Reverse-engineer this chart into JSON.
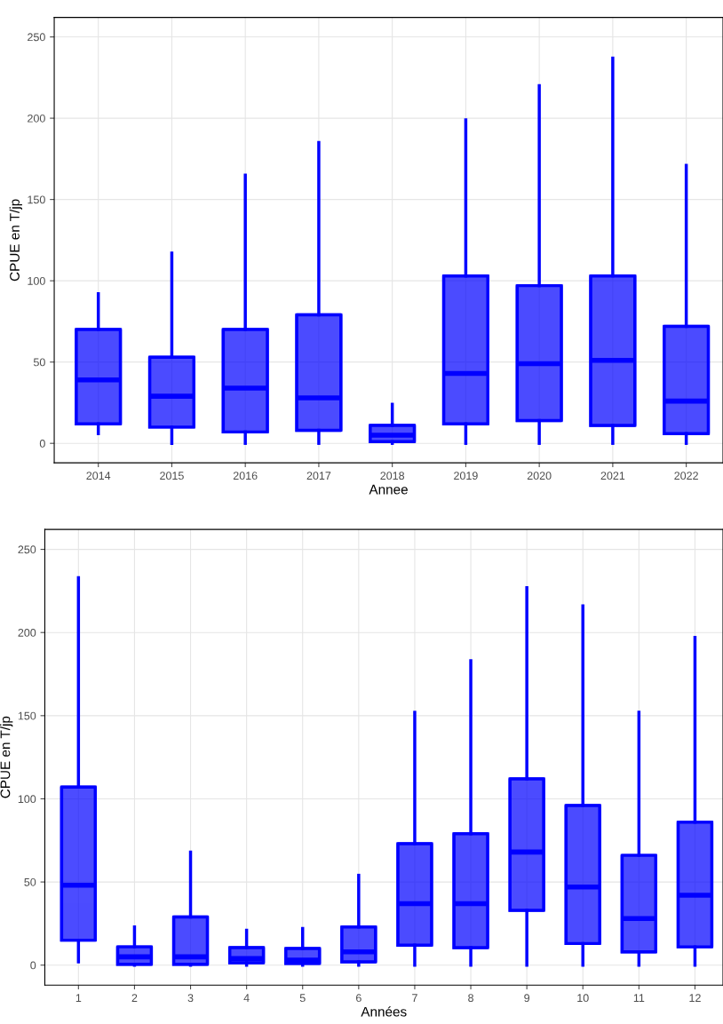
{
  "chart_data": [
    {
      "type": "box",
      "xlabel": "Annee",
      "ylabel": "CPUE en T/jp",
      "categories": [
        "2014",
        "2015",
        "2016",
        "2017",
        "2018",
        "2019",
        "2020",
        "2021",
        "2022"
      ],
      "ylim": [
        -12,
        262
      ],
      "yticks": [
        0,
        50,
        100,
        150,
        200,
        250
      ],
      "grid": true,
      "series": [
        {
          "color": "#0000ff",
          "boxes": [
            {
              "low": 6,
              "q1": 12,
              "median": 39,
              "q3": 70,
              "high": 92
            },
            {
              "low": 0,
              "q1": 10,
              "median": 29,
              "q3": 53,
              "high": 117
            },
            {
              "low": 0,
              "q1": 7,
              "median": 34,
              "q3": 70,
              "high": 165
            },
            {
              "low": 0,
              "q1": 8,
              "median": 28,
              "q3": 79,
              "high": 185
            },
            {
              "low": 0,
              "q1": 1,
              "median": 5,
              "q3": 11,
              "high": 24
            },
            {
              "low": 0,
              "q1": 12,
              "median": 43,
              "q3": 103,
              "high": 199
            },
            {
              "low": 0,
              "q1": 14,
              "median": 49,
              "q3": 97,
              "high": 220
            },
            {
              "low": 0,
              "q1": 11,
              "median": 51,
              "q3": 103,
              "high": 237
            },
            {
              "low": 0,
              "q1": 6,
              "median": 26,
              "q3": 72,
              "high": 171
            }
          ]
        }
      ]
    },
    {
      "type": "box",
      "xlabel": "Années",
      "ylabel": "CPUE en T/jp",
      "categories": [
        "1",
        "2",
        "3",
        "4",
        "5",
        "6",
        "7",
        "8",
        "9",
        "10",
        "11",
        "12"
      ],
      "ylim": [
        -12,
        262
      ],
      "yticks": [
        0,
        50,
        100,
        150,
        200,
        250
      ],
      "grid": true,
      "series": [
        {
          "color": "#0000ff",
          "boxes": [
            {
              "low": 2,
              "q1": 15,
              "median": 48,
              "q3": 107,
              "high": 233
            },
            {
              "low": 0,
              "q1": 0.5,
              "median": 5,
              "q3": 11,
              "high": 23
            },
            {
              "low": 0,
              "q1": 0.5,
              "median": 5,
              "q3": 29,
              "high": 68
            },
            {
              "low": 0,
              "q1": 1.5,
              "median": 4,
              "q3": 10.5,
              "high": 21
            },
            {
              "low": 0,
              "q1": 1,
              "median": 3,
              "q3": 10,
              "high": 22
            },
            {
              "low": 0,
              "q1": 2,
              "median": 8,
              "q3": 23,
              "high": 54
            },
            {
              "low": 0,
              "q1": 12,
              "median": 37,
              "q3": 73,
              "high": 152
            },
            {
              "low": 0,
              "q1": 10.5,
              "median": 37,
              "q3": 79,
              "high": 183
            },
            {
              "low": 0,
              "q1": 33,
              "median": 68,
              "q3": 112,
              "high": 227
            },
            {
              "low": 0,
              "q1": 13,
              "median": 47,
              "q3": 96,
              "high": 216
            },
            {
              "low": 0,
              "q1": 8,
              "median": 28,
              "q3": 66,
              "high": 152
            },
            {
              "low": 0,
              "q1": 11,
              "median": 42,
              "q3": 86,
              "high": 197
            }
          ]
        }
      ]
    }
  ]
}
